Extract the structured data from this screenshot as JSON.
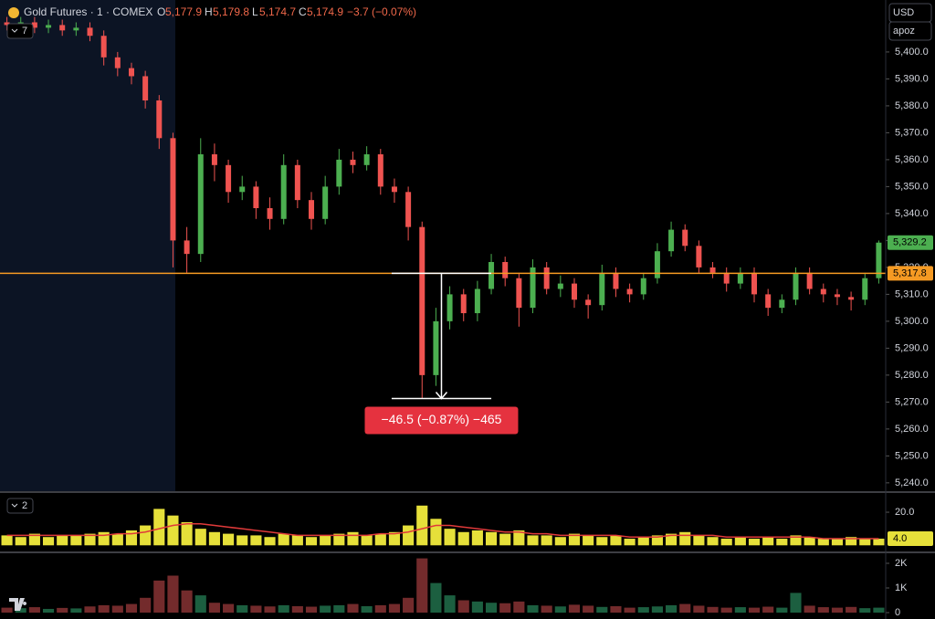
{
  "header": {
    "symbol": "Gold Futures · 1 · COMEX",
    "o_label": "O",
    "o": "5,177.9",
    "h_label": "H",
    "h": "5,179.8",
    "l_label": "L",
    "l": "5,174.7",
    "c_label": "C",
    "c": "5,174.9",
    "change": "−3.7 (−0.07%)",
    "currency": "USD",
    "scale_mode": "apoz",
    "price_panel_toggle": "7",
    "volume_panel_toggle": "2"
  },
  "chart_data": [
    {
      "type": "candlestick",
      "up_color": "#4caf50",
      "down_color": "#ef5350",
      "open": [
        5411,
        5410,
        5411,
        5409,
        5410,
        5408,
        5409,
        5406,
        5398,
        5394,
        5391,
        5382,
        5368,
        5330,
        5325,
        5362,
        5358,
        5348,
        5350,
        5342,
        5338,
        5358,
        5345,
        5338,
        5350,
        5360,
        5358,
        5362,
        5350,
        5348,
        5335,
        5280,
        5300,
        5310,
        5303,
        5312,
        5322,
        5316,
        5305,
        5320,
        5312,
        5314,
        5308,
        5306,
        5318,
        5312,
        5310,
        5316,
        5326,
        5334,
        5328,
        5320,
        5318,
        5314,
        5318,
        5310,
        5305,
        5308,
        5318,
        5312,
        5310,
        5309,
        5308,
        5316
      ],
      "high": [
        5413,
        5413,
        5413,
        5412,
        5412,
        5411,
        5411,
        5408,
        5400,
        5396,
        5393,
        5384,
        5370,
        5335,
        5368,
        5366,
        5360,
        5354,
        5352,
        5346,
        5362,
        5360,
        5348,
        5354,
        5364,
        5363,
        5365,
        5364,
        5353,
        5350,
        5337,
        5305,
        5313,
        5312,
        5315,
        5325,
        5324,
        5318,
        5323,
        5322,
        5317,
        5316,
        5310,
        5321,
        5320,
        5314,
        5318,
        5329,
        5337,
        5336,
        5330,
        5322,
        5320,
        5320,
        5320,
        5312,
        5310,
        5320,
        5320,
        5314,
        5312,
        5311,
        5318,
        5330
      ],
      "low": [
        5408,
        5408,
        5407,
        5407,
        5406,
        5406,
        5404,
        5395,
        5391,
        5388,
        5379,
        5364,
        5320,
        5318,
        5322,
        5352,
        5344,
        5345,
        5338,
        5334,
        5336,
        5342,
        5334,
        5336,
        5347,
        5355,
        5356,
        5347,
        5344,
        5330,
        5271.3,
        5276,
        5297,
        5300,
        5300,
        5310,
        5313,
        5298,
        5303,
        5310,
        5309,
        5305,
        5301,
        5304,
        5309,
        5307,
        5308,
        5314,
        5324,
        5326,
        5318,
        5316,
        5311,
        5312,
        5307,
        5302,
        5303,
        5306,
        5310,
        5307,
        5306,
        5304,
        5306,
        5314
      ],
      "close": [
        5410,
        5411,
        5409,
        5410,
        5408,
        5409,
        5406,
        5398,
        5394,
        5391,
        5382,
        5368,
        5330,
        5325,
        5362,
        5358,
        5348,
        5350,
        5342,
        5338,
        5358,
        5345,
        5338,
        5350,
        5360,
        5358,
        5362,
        5350,
        5348,
        5335,
        5280,
        5300,
        5310,
        5303,
        5312,
        5322,
        5316,
        5305,
        5320,
        5312,
        5314,
        5308,
        5306,
        5318,
        5312,
        5310,
        5316,
        5326,
        5334,
        5328,
        5320,
        5318,
        5314,
        5318,
        5310,
        5305,
        5308,
        5318,
        5312,
        5310,
        5309,
        5308,
        5316,
        5329.2
      ],
      "ylim": [
        5236.9,
        5419.3
      ],
      "yticks": [
        {
          "value": 5240,
          "label": "5,240.0"
        },
        {
          "value": 5250,
          "label": "5,250.0"
        },
        {
          "value": 5260,
          "label": "5,260.0"
        },
        {
          "value": 5270,
          "label": "5,270.0"
        },
        {
          "value": 5280,
          "label": "5,280.0"
        },
        {
          "value": 5290,
          "label": "5,290.0"
        },
        {
          "value": 5300,
          "label": "5,300.0"
        },
        {
          "value": 5310,
          "label": "5,310.0"
        },
        {
          "value": 5320,
          "label": "5,320.0"
        },
        {
          "value": 5330,
          "label": "5,330.0"
        },
        {
          "value": 5340,
          "label": "5,340.0"
        },
        {
          "value": 5350,
          "label": "5,350.0"
        },
        {
          "value": 5360,
          "label": "5,360.0"
        },
        {
          "value": 5370,
          "label": "5,370.0"
        },
        {
          "value": 5380,
          "label": "5,380.0"
        },
        {
          "value": 5390,
          "label": "5,390.0"
        },
        {
          "value": 5400,
          "label": "5,400.0"
        }
      ],
      "last_label": "5,329.2",
      "price_line": {
        "value": 5317.8,
        "label": "5,317.8",
        "color": "#f59a23"
      },
      "measure": {
        "from": 5317.8,
        "to": 5271.3,
        "label": "−46.5 (−0.87%) −465",
        "color": "#e5323f"
      }
    },
    {
      "type": "bar",
      "color": "#e6e03a",
      "values": [
        6,
        5,
        7,
        5,
        6,
        6,
        7,
        8,
        7,
        9,
        12,
        22,
        18,
        14,
        10,
        8,
        7,
        6,
        6,
        5,
        7,
        6,
        5,
        6,
        7,
        8,
        6,
        7,
        8,
        12,
        24,
        16,
        10,
        8,
        9,
        8,
        7,
        9,
        6,
        6,
        5,
        7,
        6,
        5,
        6,
        4,
        5,
        6,
        7,
        8,
        6,
        5,
        4,
        5,
        4,
        5,
        4,
        6,
        5,
        4,
        4,
        5,
        4,
        4
      ],
      "ma": {
        "color": "#e03a3a",
        "values": [
          6,
          6,
          6,
          6,
          6,
          6,
          6,
          6,
          7,
          7,
          8,
          10,
          12,
          13,
          13,
          12,
          11,
          10,
          9,
          8,
          7,
          6,
          6,
          6,
          6,
          6,
          6,
          7,
          7,
          8,
          10,
          12,
          12,
          11,
          10,
          9,
          8,
          8,
          7,
          7,
          6,
          6,
          6,
          6,
          6,
          5,
          5,
          5,
          6,
          6,
          6,
          6,
          5,
          5,
          5,
          5,
          5,
          5,
          5,
          4,
          4,
          4,
          4,
          4
        ]
      },
      "ylim": [
        -3.7,
        31.6
      ],
      "yticks": [
        {
          "value": 20,
          "label": "20.0"
        }
      ],
      "last_label": "4.0"
    },
    {
      "type": "bar",
      "up_color": "#2e9e6a",
      "down_color": "#c0474a",
      "values": [
        200,
        180,
        220,
        150,
        190,
        170,
        250,
        300,
        280,
        350,
        600,
        1300,
        1500,
        900,
        700,
        400,
        350,
        300,
        280,
        250,
        300,
        260,
        240,
        280,
        300,
        350,
        260,
        300,
        350,
        600,
        2200,
        1200,
        700,
        500,
        450,
        400,
        380,
        450,
        300,
        280,
        250,
        320,
        280,
        230,
        260,
        200,
        220,
        250,
        300,
        350,
        280,
        230,
        200,
        220,
        200,
        240,
        200,
        800,
        280,
        220,
        200,
        230,
        180,
        200
      ],
      "ylim": [
        -259,
        2407
      ],
      "yticks": [
        {
          "value": 2000,
          "label": "2K"
        },
        {
          "value": 1000,
          "label": "1K"
        },
        0
      ]
    }
  ]
}
